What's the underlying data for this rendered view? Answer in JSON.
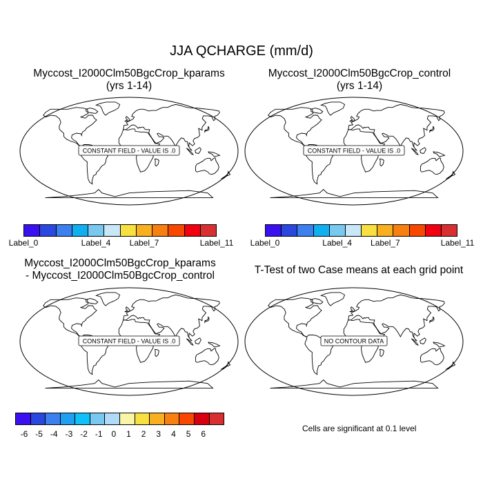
{
  "title": "JJA QCHARGE (mm/d)",
  "panels": {
    "top_left": {
      "title_line1": "Myccost_I2000Clm50BgcCrop_kparams",
      "title_line2": "(yrs 1-14)",
      "field_label": "CONSTANT FIELD - VALUE IS .0"
    },
    "top_right": {
      "title_line1": "Myccost_I2000Clm50BgcCrop_control",
      "title_line2": "(yrs 1-14)",
      "field_label": "CONSTANT FIELD - VALUE IS .0"
    },
    "bottom_left": {
      "title_line1": "Myccost_I2000Clm50BgcCrop_kparams",
      "title_line2": "- Myccost_I2000Clm50BgcCrop_control",
      "field_label": "CONSTANT FIELD - VALUE IS .0"
    },
    "bottom_right": {
      "title_line1": "T-Test of two Case means at each grid point",
      "field_label": "NO CONTOUR DATA"
    }
  },
  "colorbar_top": {
    "colors": [
      "#3a10f0",
      "#2a48e0",
      "#3c80f0",
      "#10b0f0",
      "#78c8f0",
      "#c8e8f8",
      "#f8e040",
      "#f8b020",
      "#f88010",
      "#f84800",
      "#f00010",
      "#d83030"
    ],
    "labels": [
      "Label_0",
      "Label_4",
      "Label_7",
      "Label_11"
    ]
  },
  "colorbar_bottom": {
    "colors": [
      "#3a10f0",
      "#2a48e0",
      "#3c80f0",
      "#20a0f0",
      "#10c0f8",
      "#78c8f0",
      "#b0daf8",
      "#f8f4a8",
      "#f8e040",
      "#f8b020",
      "#f88010",
      "#f84800",
      "#d80010",
      "#d83030"
    ],
    "labels": [
      "-6",
      "-5",
      "-4",
      "-3",
      "-2",
      "-1",
      "0",
      "1",
      "2",
      "3",
      "4",
      "5",
      "6"
    ]
  },
  "significance_note": "Cells are significant at 0.1 level"
}
